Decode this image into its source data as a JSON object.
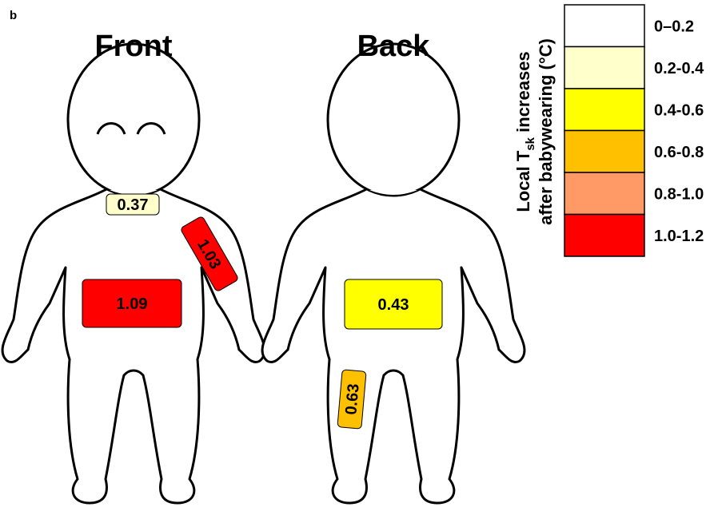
{
  "panel_label": "b",
  "figures": [
    {
      "title": "Front",
      "patches": [
        {
          "value": "0.37",
          "color": "#ffffcc"
        },
        {
          "value": "1.03",
          "color": "#ff0000"
        },
        {
          "value": "1.09",
          "color": "#ff0000"
        }
      ]
    },
    {
      "title": "Back",
      "patches": [
        {
          "value": "0.43",
          "color": "#ffff00"
        },
        {
          "value": "0.63",
          "color": "#ffc000"
        }
      ]
    }
  ],
  "legend": {
    "title_line1": {
      "text": "Local T",
      "subscript": "sk",
      "rest": " increases"
    },
    "title_line2": "after babywearing (°C)",
    "entries": [
      {
        "label": "0–0.2",
        "color": "#ffffff"
      },
      {
        "label": "0.2-0.4",
        "color": "#ffffcc"
      },
      {
        "label": "0.4-0.6",
        "color": "#ffff00"
      },
      {
        "label": "0.6-0.8",
        "color": "#ffc000"
      },
      {
        "label": "0.8-1.0",
        "color": "#ff9966"
      },
      {
        "label": "1.0-1.2",
        "color": "#ff0000"
      }
    ]
  }
}
